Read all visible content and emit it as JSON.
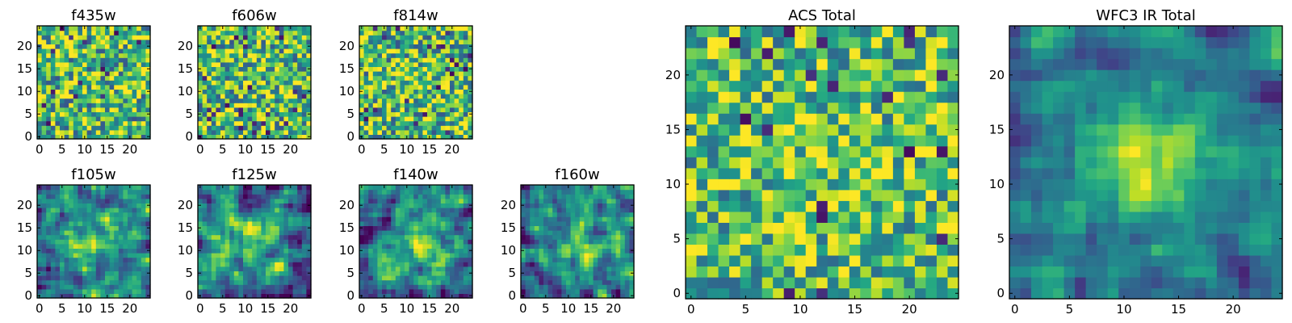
{
  "colors": {
    "low": "#440154",
    "mid": "#21918c",
    "high": "#fde725",
    "colormap": "viridis"
  },
  "chart_data": [
    {
      "type": "heatmap",
      "title": "f435w",
      "grid": [
        25,
        25
      ],
      "xlim": [
        0,
        24
      ],
      "ylim": [
        0,
        24
      ],
      "xticks": [
        "0",
        "5",
        "10",
        "15",
        "20"
      ],
      "yticks": [
        "0",
        "5",
        "10",
        "15",
        "20"
      ],
      "structure": "noise",
      "noise": 0.26,
      "center": [
        12,
        12
      ],
      "sigma": 4,
      "peak": 0.0,
      "seed": 11
    },
    {
      "type": "heatmap",
      "title": "f606w",
      "grid": [
        25,
        25
      ],
      "xlim": [
        0,
        24
      ],
      "ylim": [
        0,
        24
      ],
      "xticks": [
        "0",
        "5",
        "10",
        "15",
        "20"
      ],
      "yticks": [
        "0",
        "5",
        "10",
        "15",
        "20"
      ],
      "structure": "noise",
      "noise": 0.26,
      "center": [
        12,
        12
      ],
      "sigma": 4,
      "peak": 0.05,
      "seed": 23
    },
    {
      "type": "heatmap",
      "title": "f814w",
      "grid": [
        25,
        25
      ],
      "xlim": [
        0,
        24
      ],
      "ylim": [
        0,
        24
      ],
      "xticks": [
        "0",
        "5",
        "10",
        "15",
        "20"
      ],
      "yticks": [
        "0",
        "5",
        "10",
        "15",
        "20"
      ],
      "structure": "noise",
      "noise": 0.26,
      "center": [
        13,
        12
      ],
      "sigma": 3,
      "peak": 0.12,
      "seed": 37
    },
    {
      "type": "heatmap",
      "title": "f105w",
      "grid": [
        25,
        25
      ],
      "xlim": [
        0,
        24
      ],
      "ylim": [
        0,
        24
      ],
      "xticks": [
        "0",
        "5",
        "10",
        "15",
        "20"
      ],
      "yticks": [
        "0",
        "5",
        "10",
        "15",
        "20"
      ],
      "structure": "source",
      "noise": 0.2,
      "center": [
        12,
        12
      ],
      "sigma": 5,
      "peak": 0.35,
      "seed": 41
    },
    {
      "type": "heatmap",
      "title": "f125w",
      "grid": [
        25,
        25
      ],
      "xlim": [
        0,
        24
      ],
      "ylim": [
        0,
        24
      ],
      "xticks": [
        "0",
        "5",
        "10",
        "15",
        "20"
      ],
      "yticks": [
        "0",
        "5",
        "10",
        "15",
        "20"
      ],
      "structure": "source",
      "noise": 0.2,
      "center": [
        12,
        13
      ],
      "sigma": 5,
      "peak": 0.3,
      "seed": 53
    },
    {
      "type": "heatmap",
      "title": "f140w",
      "grid": [
        25,
        25
      ],
      "xlim": [
        0,
        24
      ],
      "ylim": [
        0,
        24
      ],
      "xticks": [
        "0",
        "5",
        "10",
        "15",
        "20"
      ],
      "yticks": [
        "0",
        "5",
        "10",
        "15",
        "20"
      ],
      "structure": "source",
      "noise": 0.2,
      "center": [
        13,
        12
      ],
      "sigma": 5,
      "peak": 0.35,
      "seed": 67
    },
    {
      "type": "heatmap",
      "title": "f160w",
      "grid": [
        25,
        25
      ],
      "xlim": [
        0,
        24
      ],
      "ylim": [
        0,
        24
      ],
      "xticks": [
        "0",
        "5",
        "10",
        "15",
        "20"
      ],
      "yticks": [
        "0",
        "5",
        "10",
        "15",
        "20"
      ],
      "structure": "source",
      "noise": 0.2,
      "center": [
        13,
        11
      ],
      "sigma": 5,
      "peak": 0.35,
      "seed": 79
    },
    {
      "type": "heatmap",
      "title": "ACS Total",
      "grid": [
        25,
        25
      ],
      "xlim": [
        0,
        24
      ],
      "ylim": [
        0,
        24
      ],
      "xticks": [
        "0",
        "5",
        "10",
        "15",
        "20"
      ],
      "yticks": [
        "0",
        "5",
        "10",
        "15",
        "20"
      ],
      "structure": "noise",
      "noise": 0.22,
      "center": [
        12,
        12
      ],
      "sigma": 4,
      "peak": 0.08,
      "seed": 97
    },
    {
      "type": "heatmap",
      "title": "WFC3 IR Total",
      "grid": [
        25,
        25
      ],
      "xlim": [
        0,
        24
      ],
      "ylim": [
        0,
        24
      ],
      "xticks": [
        "0",
        "5",
        "10",
        "15",
        "20"
      ],
      "yticks": [
        "0",
        "5",
        "10",
        "15",
        "20"
      ],
      "structure": "source",
      "noise": 0.13,
      "center": [
        12,
        12
      ],
      "sigma": 4,
      "peak": 0.45,
      "seed": 113
    }
  ]
}
